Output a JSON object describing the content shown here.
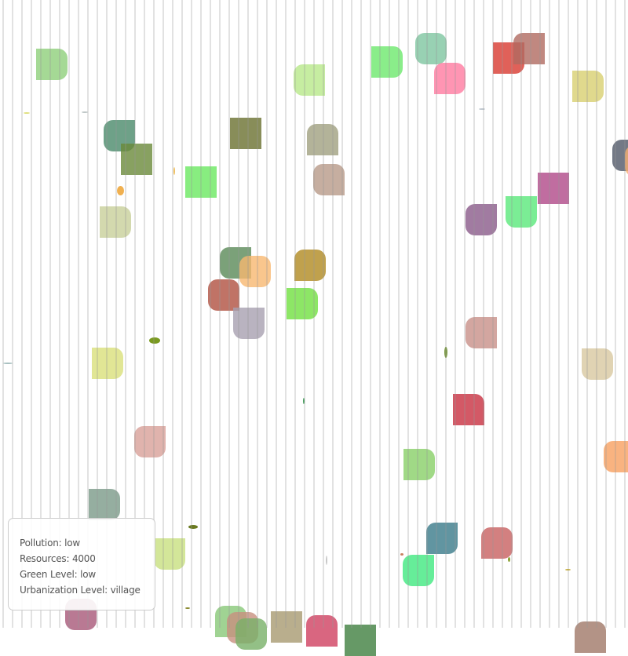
{
  "stats": {
    "pollution": "Pollution: low",
    "resources": "Resources: 4000",
    "green_level": "Green Level: low",
    "urbanization": "Urbanization Level: village"
  },
  "colors": {
    "background": "#ffffff",
    "stripes": "#d8d8d8",
    "panel_border": "#cccccc",
    "panel_text": "#555555"
  }
}
